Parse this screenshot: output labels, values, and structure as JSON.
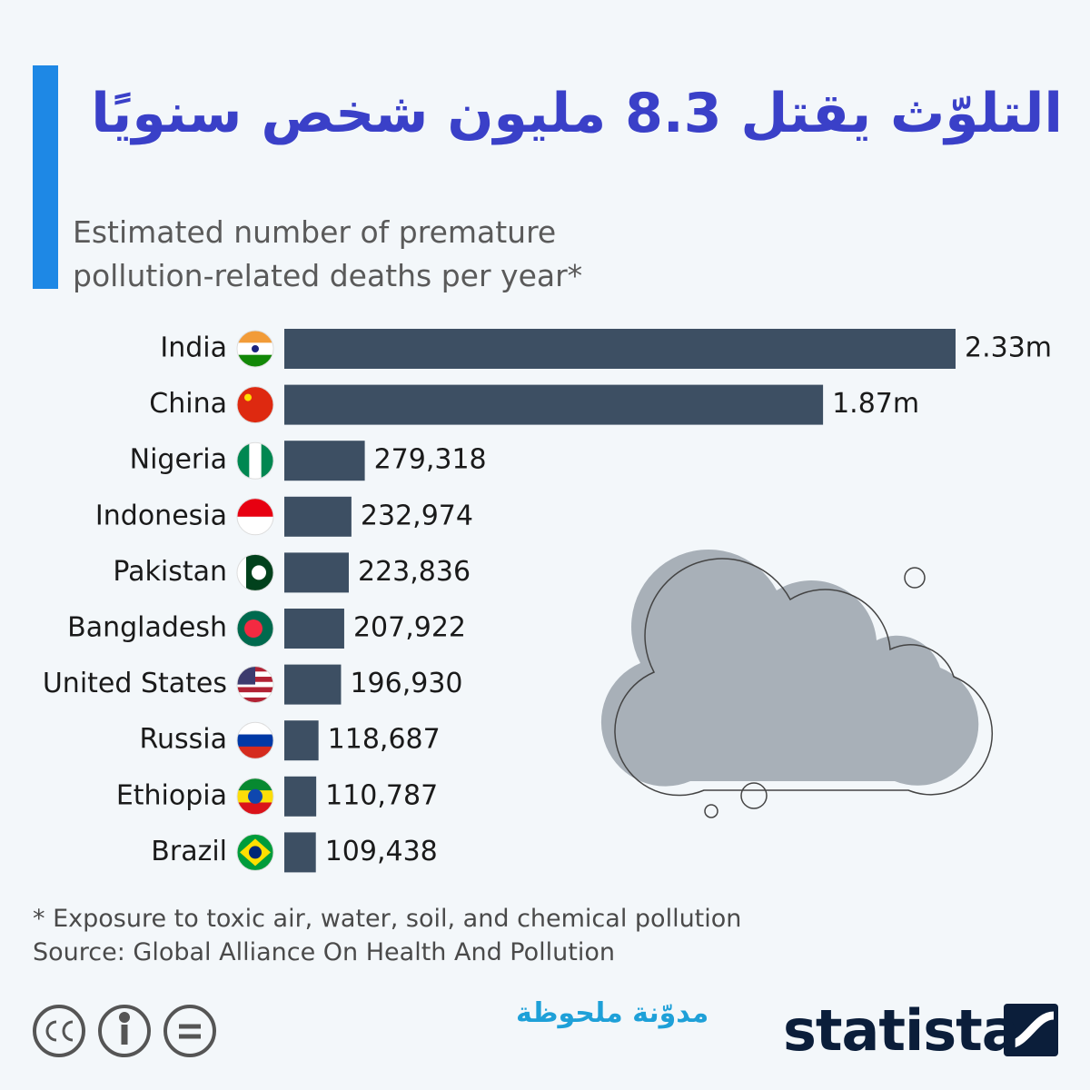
{
  "header": {
    "title": "التلوّث يقتل 8.3 مليون شخص سنويًا",
    "subtitle": "Estimated number of premature pollution-related deaths per year*"
  },
  "chart_data": {
    "type": "bar",
    "orientation": "horizontal",
    "categories": [
      "India",
      "China",
      "Nigeria",
      "Indonesia",
      "Pakistan",
      "Bangladesh",
      "United States",
      "Russia",
      "Ethiopia",
      "Brazil"
    ],
    "values": [
      2330000,
      1870000,
      279318,
      232974,
      223836,
      207922,
      196930,
      118687,
      110787,
      109438
    ],
    "value_labels": [
      "2.33m",
      "1.87m",
      "279,318",
      "232,974",
      "223,836",
      "207,922",
      "196,930",
      "118,687",
      "110,787",
      "109,438"
    ],
    "color": "#3d4f63"
  },
  "footer": {
    "note": "* Exposure to toxic air, water, soil, and chemical pollution",
    "source": "Source: Global Alliance On Health And Pollution",
    "watermark": "مدوّنة ملحوظة",
    "logo": "statista"
  }
}
